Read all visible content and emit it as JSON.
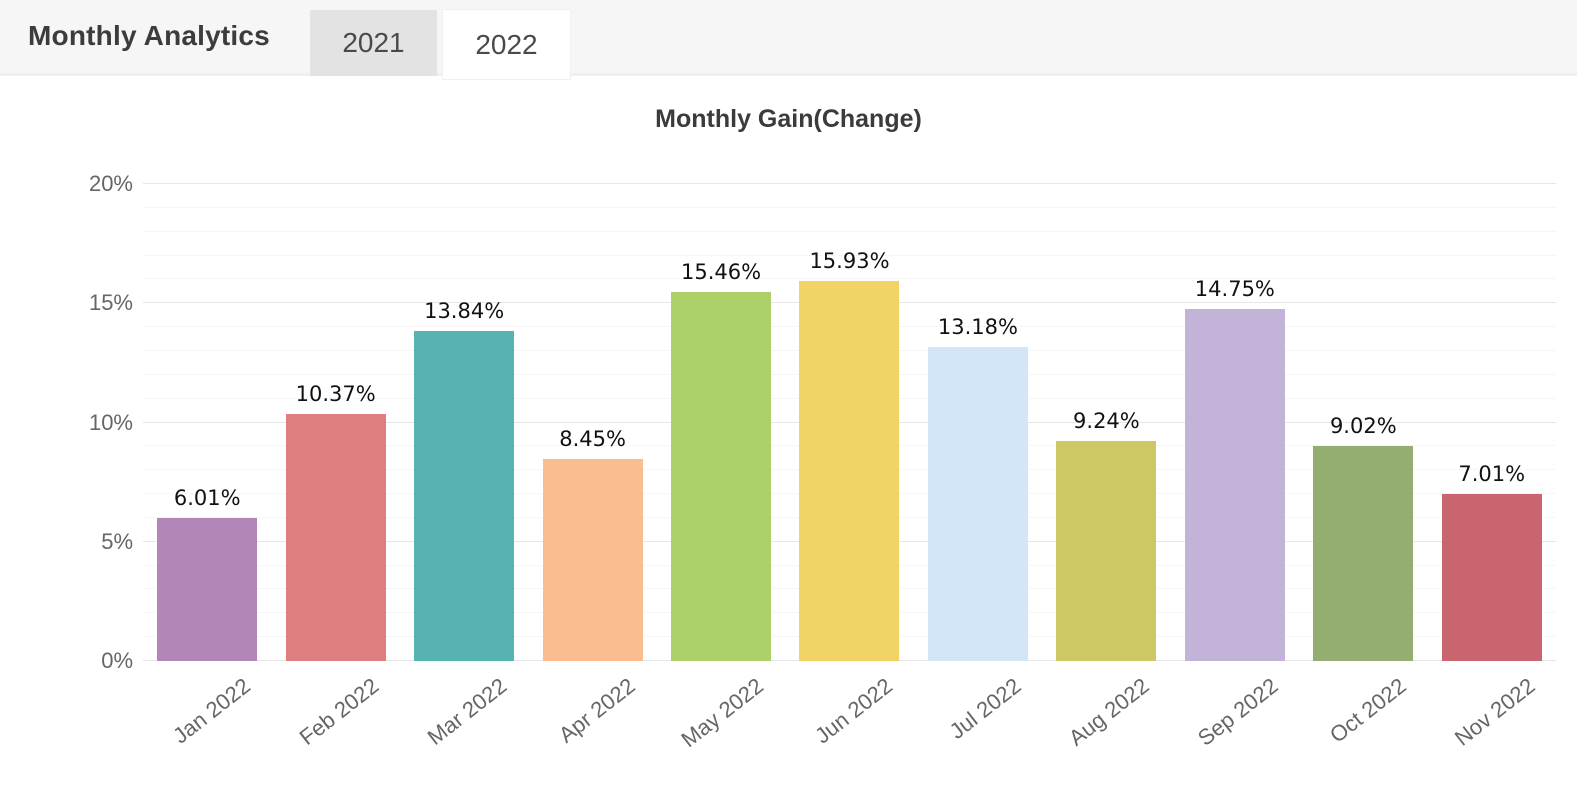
{
  "header": {
    "title": "Monthly Analytics",
    "tabs": [
      {
        "label": "2021",
        "active": false
      },
      {
        "label": "2022",
        "active": true
      }
    ]
  },
  "colors": {
    "header_bg": "#f6f6f6",
    "tab_inactive_bg": "#e3e3e3",
    "tab_active_bg": "#ffffff",
    "gridline_major": "#e7e7e7",
    "gridline_minor": "#f6f6f6",
    "axis_text": "#666666",
    "value_text": "#111111"
  },
  "chart_data": {
    "type": "bar",
    "title": "Monthly Gain(Change)",
    "categories": [
      "Jan 2022",
      "Feb 2022",
      "Mar 2022",
      "Apr 2022",
      "May 2022",
      "Jun 2022",
      "Jul 2022",
      "Aug 2022",
      "Sep 2022",
      "Oct 2022",
      "Nov 2022"
    ],
    "values": [
      6.01,
      10.37,
      13.84,
      8.45,
      15.46,
      15.93,
      13.18,
      9.24,
      14.75,
      9.02,
      7.01
    ],
    "value_labels": [
      "6.01%",
      "10.37%",
      "13.84%",
      "8.45%",
      "15.46%",
      "15.93%",
      "13.18%",
      "9.24%",
      "14.75%",
      "9.02%",
      "7.01%"
    ],
    "bar_colors": [
      "#b287b8",
      "#df7e7e",
      "#57b2b2",
      "#fbbc90",
      "#aed06a",
      "#f2d366",
      "#d2e6f8",
      "#cdc863",
      "#c4b3d9",
      "#94ad70",
      "#c9656f"
    ],
    "xlabel": "",
    "ylabel": "",
    "ylim": [
      0,
      20
    ],
    "ytick_step_major": 5,
    "ytick_step_minor": 1,
    "ytick_labels": [
      "0%",
      "5%",
      "10%",
      "15%",
      "20%"
    ],
    "grid": true,
    "legend": "none"
  }
}
